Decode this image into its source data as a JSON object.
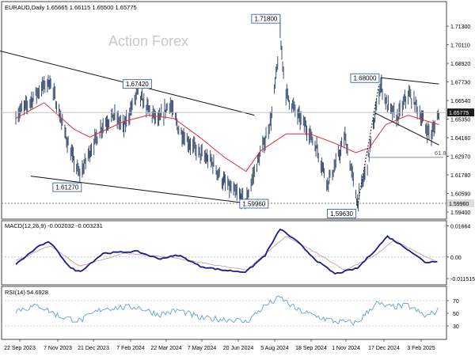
{
  "watermark": "Action Forex",
  "colors": {
    "bars": "#3a4f73",
    "ma": "#e03030",
    "macd": "#1a1a8c",
    "signal": "#c8a0a0",
    "rsi": "#5aa0e6",
    "annotation_border": "#2a4aa0",
    "current_tag": "#1a1a1a"
  },
  "chart_data": [
    {
      "type": "ohlc",
      "title": "EURAUD,Daily  1.65665 1.66115 1.65500 1.65775",
      "ylim": [
        1.592,
        1.7262
      ],
      "price_ticks": [
        "1.71300",
        "1.70110",
        "1.68920",
        "1.67730",
        "1.66540",
        "1.65350",
        "1.64160",
        "1.62970",
        "1.61780",
        "1.60590",
        "1.59400"
      ],
      "current_price": "1.65775",
      "dashed_level": "1.59960",
      "fib_label": "61.8",
      "fib_level": 1.629,
      "annotations": [
        {
          "text": "1.71800",
          "date": "2024-08-05",
          "price": 1.718
        },
        {
          "text": "1.67420",
          "date": "2024-02-15",
          "price": 1.6742
        },
        {
          "text": "1.68000",
          "date": "2024-12-04",
          "price": 1.68
        },
        {
          "text": "1.61270",
          "date": "2023-12-08",
          "price": 1.6127
        },
        {
          "text": "1.59960",
          "date": "2024-06-25",
          "price": 1.5996
        },
        {
          "text": "1.59630",
          "date": "2024-11-06",
          "price": 1.5963
        }
      ],
      "price_path": [
        [
          "2023-09-22",
          1.656
        ],
        [
          "2023-10-05",
          1.662
        ],
        [
          "2023-10-20",
          1.672
        ],
        [
          "2023-11-02",
          1.678
        ],
        [
          "2023-11-14",
          1.656
        ],
        [
          "2023-11-27",
          1.632
        ],
        [
          "2023-12-08",
          1.617
        ],
        [
          "2023-12-20",
          1.633
        ],
        [
          "2024-01-05",
          1.65
        ],
        [
          "2024-01-18",
          1.656
        ],
        [
          "2024-01-30",
          1.648
        ],
        [
          "2024-02-15",
          1.67
        ],
        [
          "2024-02-28",
          1.66
        ],
        [
          "2024-03-12",
          1.652
        ],
        [
          "2024-03-25",
          1.664
        ],
        [
          "2024-04-05",
          1.647
        ],
        [
          "2024-04-18",
          1.638
        ],
        [
          "2024-05-01",
          1.631
        ],
        [
          "2024-05-15",
          1.626
        ],
        [
          "2024-05-28",
          1.614
        ],
        [
          "2024-06-10",
          1.607
        ],
        [
          "2024-06-25",
          1.601
        ],
        [
          "2024-07-05",
          1.62
        ],
        [
          "2024-07-18",
          1.64
        ],
        [
          "2024-07-26",
          1.656
        ],
        [
          "2024-08-05",
          1.705
        ],
        [
          "2024-08-12",
          1.67
        ],
        [
          "2024-08-26",
          1.656
        ],
        [
          "2024-09-06",
          1.648
        ],
        [
          "2024-09-18",
          1.635
        ],
        [
          "2024-10-01",
          1.613
        ],
        [
          "2024-10-10",
          1.623
        ],
        [
          "2024-10-22",
          1.642
        ],
        [
          "2024-11-06",
          1.6
        ],
        [
          "2024-11-18",
          1.625
        ],
        [
          "2024-11-28",
          1.658
        ],
        [
          "2024-12-04",
          1.676
        ],
        [
          "2024-12-12",
          1.662
        ],
        [
          "2024-12-24",
          1.654
        ],
        [
          "2025-01-06",
          1.67
        ],
        [
          "2025-01-16",
          1.662
        ],
        [
          "2025-01-27",
          1.648
        ],
        [
          "2025-02-03",
          1.643
        ],
        [
          "2025-02-12",
          1.658
        ]
      ],
      "ma_path": [
        [
          "2023-09-22",
          1.654
        ],
        [
          "2023-10-26",
          1.664
        ],
        [
          "2023-12-01",
          1.647
        ],
        [
          "2023-12-20",
          1.642
        ],
        [
          "2024-01-30",
          1.652
        ],
        [
          "2024-02-28",
          1.656
        ],
        [
          "2024-03-30",
          1.654
        ],
        [
          "2024-04-30",
          1.642
        ],
        [
          "2024-05-30",
          1.629
        ],
        [
          "2024-06-25",
          1.62
        ],
        [
          "2024-07-12",
          1.633
        ],
        [
          "2024-08-12",
          1.644
        ],
        [
          "2024-09-10",
          1.644
        ],
        [
          "2024-10-10",
          1.638
        ],
        [
          "2024-11-04",
          1.632
        ],
        [
          "2024-11-20",
          1.635
        ],
        [
          "2024-12-10",
          1.65
        ],
        [
          "2025-01-06",
          1.656
        ],
        [
          "2025-01-30",
          1.652
        ],
        [
          "2025-02-12",
          1.65
        ]
      ],
      "trendlines": [
        [
          [
            "2023-08-20",
            1.699
          ],
          [
            "2024-07-05",
            1.656
          ]
        ],
        [
          [
            "2023-10-10",
            1.617
          ],
          [
            "2024-07-20",
            1.598
          ]
        ],
        [
          [
            "2024-12-04",
            1.68
          ],
          [
            "2025-02-12",
            1.676
          ]
        ],
        [
          [
            "2024-11-25",
            1.658
          ],
          [
            "2025-02-12",
            1.637
          ]
        ]
      ],
      "channel_dotted": [
        [
          "2024-11-06",
          1.598
        ],
        [
          "2024-12-02",
          1.676
        ]
      ],
      "dates": [
        "22 Sep 2023",
        "7 Nov 2023",
        "21 Dec 2023",
        "7 Feb 2024",
        "22 Mar 2024",
        "7 May 2024",
        "20 Jun 2024",
        "5 Aug 2024",
        "18 Sep 2024",
        "1 Nov 2024",
        "17 Dec 2024",
        "3 Feb 2025"
      ]
    },
    {
      "type": "line",
      "title": "MACD(12,26,9) -0.002032 -0.003231",
      "ylim": [
        -0.014,
        0.0185
      ],
      "ticks": [
        0.01664,
        0.0,
        -0.011515
      ],
      "tick_labels": [
        "0.01664",
        "0.00",
        "-0.011515"
      ],
      "macd_path": [
        [
          "2023-09-22",
          -0.004
        ],
        [
          "2023-10-20",
          0.006
        ],
        [
          "2023-11-02",
          0.008
        ],
        [
          "2023-11-27",
          -0.006
        ],
        [
          "2023-12-08",
          -0.008
        ],
        [
          "2024-01-05",
          0.002
        ],
        [
          "2024-02-15",
          0.003
        ],
        [
          "2024-03-12",
          -0.001
        ],
        [
          "2024-04-05",
          0.001
        ],
        [
          "2024-05-01",
          -0.005
        ],
        [
          "2024-05-28",
          -0.007
        ],
        [
          "2024-06-25",
          -0.008
        ],
        [
          "2024-07-18",
          0.001
        ],
        [
          "2024-08-05",
          0.015
        ],
        [
          "2024-08-26",
          0.008
        ],
        [
          "2024-09-18",
          -0.002
        ],
        [
          "2024-10-10",
          -0.009
        ],
        [
          "2024-11-06",
          -0.006
        ],
        [
          "2024-11-28",
          0.004
        ],
        [
          "2024-12-12",
          0.011
        ],
        [
          "2025-01-06",
          0.004
        ],
        [
          "2025-01-27",
          -0.003
        ],
        [
          "2025-02-12",
          -0.002
        ]
      ],
      "signal_path": [
        [
          "2023-09-22",
          -0.002
        ],
        [
          "2023-11-02",
          0.006
        ],
        [
          "2023-12-08",
          -0.005
        ],
        [
          "2024-01-30",
          0.002
        ],
        [
          "2024-03-25",
          0.0
        ],
        [
          "2024-05-15",
          -0.004
        ],
        [
          "2024-06-25",
          -0.007
        ],
        [
          "2024-08-12",
          0.011
        ],
        [
          "2024-09-18",
          0.002
        ],
        [
          "2024-10-22",
          -0.007
        ],
        [
          "2024-11-28",
          0.001
        ],
        [
          "2024-12-20",
          0.009
        ],
        [
          "2025-01-27",
          0.0
        ],
        [
          "2025-02-12",
          -0.003
        ]
      ]
    },
    {
      "type": "line",
      "title": "RSI(14) 54.6928",
      "ylim": [
        10,
        90
      ],
      "ticks": [
        70,
        50,
        30
      ],
      "tick_labels": [
        "70",
        "50",
        "30"
      ],
      "rsi_path": [
        [
          "2023-09-22",
          55
        ],
        [
          "2023-10-20",
          62
        ],
        [
          "2023-11-14",
          45
        ],
        [
          "2023-12-08",
          38
        ],
        [
          "2024-01-05",
          58
        ],
        [
          "2024-02-15",
          60
        ],
        [
          "2024-03-12",
          48
        ],
        [
          "2024-04-05",
          55
        ],
        [
          "2024-05-01",
          42
        ],
        [
          "2024-06-10",
          40
        ],
        [
          "2024-06-25",
          36
        ],
        [
          "2024-07-18",
          62
        ],
        [
          "2024-08-05",
          75
        ],
        [
          "2024-08-26",
          55
        ],
        [
          "2024-09-18",
          45
        ],
        [
          "2024-10-10",
          37
        ],
        [
          "2024-11-06",
          35
        ],
        [
          "2024-11-28",
          66
        ],
        [
          "2024-12-12",
          60
        ],
        [
          "2025-01-06",
          62
        ],
        [
          "2025-01-27",
          45
        ],
        [
          "2025-02-12",
          55
        ]
      ]
    }
  ]
}
